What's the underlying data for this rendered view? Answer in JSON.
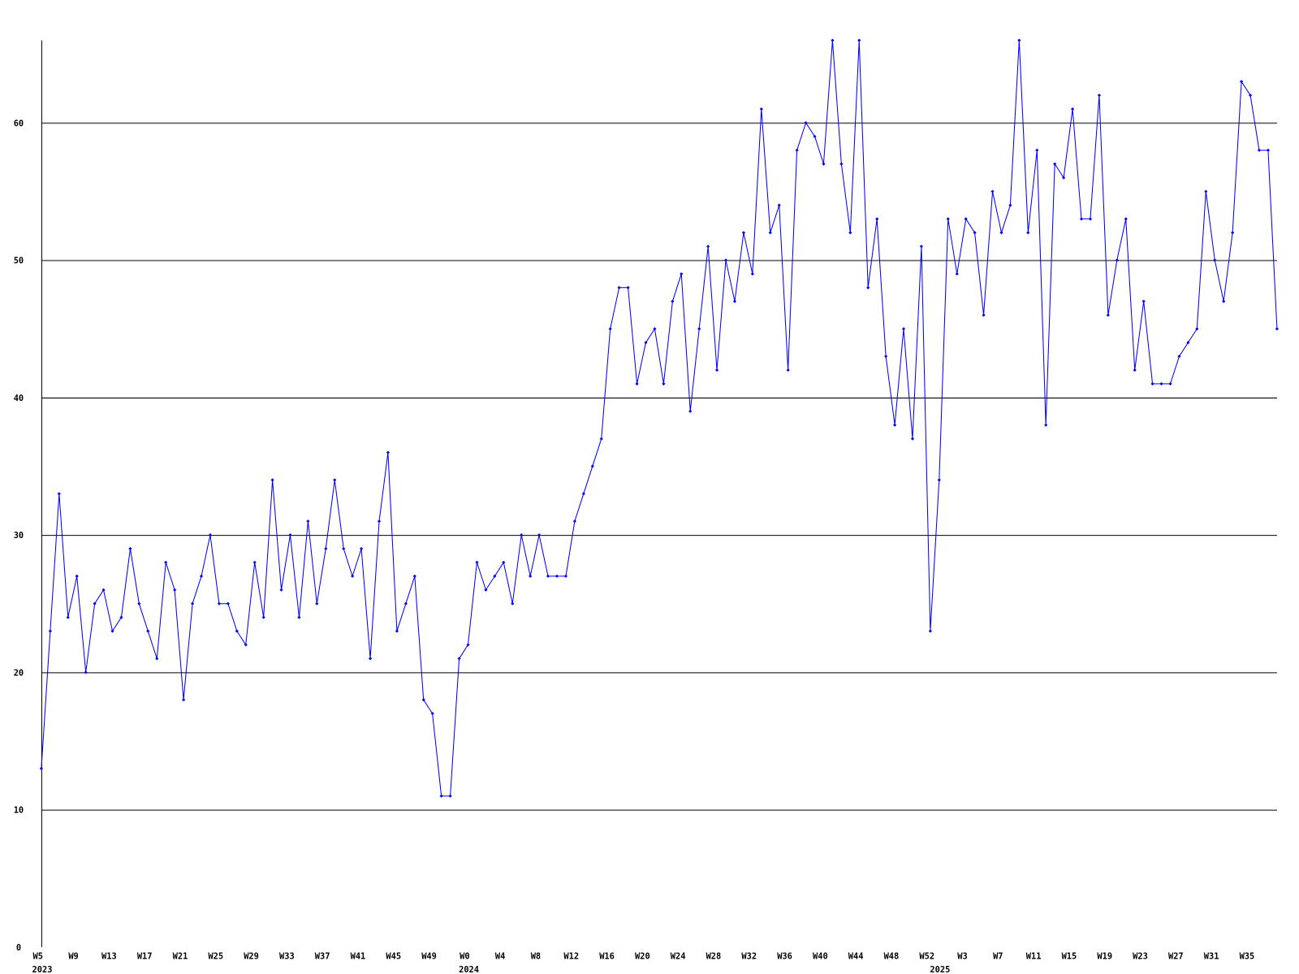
{
  "chart_data": {
    "type": "line",
    "categories": [
      "W5",
      null,
      null,
      null,
      "W9",
      null,
      null,
      null,
      "W13",
      null,
      null,
      null,
      "W17",
      null,
      null,
      null,
      "W21",
      null,
      null,
      null,
      "W25",
      null,
      null,
      null,
      "W29",
      null,
      null,
      null,
      "W33",
      null,
      null,
      null,
      "W37",
      null,
      null,
      null,
      "W41",
      null,
      null,
      null,
      "W45",
      null,
      null,
      null,
      "W49",
      null,
      null,
      null,
      "W0",
      null,
      null,
      null,
      "W4",
      null,
      null,
      null,
      "W8",
      null,
      null,
      null,
      "W12",
      null,
      null,
      null,
      "W16",
      null,
      null,
      null,
      "W20",
      null,
      null,
      null,
      "W24",
      null,
      null,
      null,
      "W28",
      null,
      null,
      null,
      "W32",
      null,
      null,
      null,
      "W36",
      null,
      null,
      null,
      "W40",
      null,
      null,
      null,
      "W44",
      null,
      null,
      null,
      "W48",
      null,
      null,
      null,
      "W52",
      null,
      null,
      null,
      "W3",
      null,
      null,
      null,
      "W7",
      null,
      null,
      null,
      "W11",
      null,
      null,
      null,
      "W15",
      null,
      null,
      null,
      "W19",
      null,
      null,
      null,
      "W23",
      null,
      null,
      null,
      "W27",
      null,
      null,
      null,
      "W31",
      null,
      null,
      null,
      "W35",
      null,
      null,
      null
    ],
    "year_labels": [
      {
        "category": 0,
        "label": "2023"
      },
      {
        "category": 48,
        "label": "2024"
      },
      {
        "category": 101,
        "label": "2025"
      }
    ],
    "series": [
      {
        "color": "#0000ff",
        "values": [
          13,
          23,
          33,
          24,
          27,
          20,
          25,
          26,
          23,
          24,
          29,
          25,
          23,
          21,
          28,
          26,
          18,
          25,
          27,
          30,
          25,
          25,
          23,
          22,
          28,
          24,
          34,
          26,
          30,
          24,
          31,
          25,
          29,
          34,
          29,
          27,
          29,
          21,
          31,
          36,
          23,
          25,
          27,
          18,
          17,
          11,
          11,
          21,
          22,
          28,
          26,
          27,
          28,
          25,
          30,
          27,
          30,
          27,
          27,
          27,
          31,
          33,
          35,
          37,
          45,
          48,
          48,
          41,
          44,
          45,
          41,
          47,
          49,
          39,
          45,
          51,
          42,
          50,
          47,
          52,
          49,
          61,
          52,
          54,
          42,
          58,
          60,
          59,
          57,
          66,
          57,
          52,
          66,
          48,
          53,
          43,
          38,
          45,
          37,
          51,
          23,
          34,
          53,
          49,
          53,
          52,
          46,
          55,
          52,
          54,
          66,
          52,
          58,
          38,
          57,
          56,
          61,
          53,
          53,
          62,
          46,
          50,
          53,
          42,
          47,
          41,
          41,
          41,
          43,
          44,
          45,
          55,
          50,
          47,
          52,
          63,
          62,
          58,
          58,
          45
        ]
      }
    ],
    "ylim": [
      0,
      66
    ],
    "yticks": [
      0,
      10,
      20,
      30,
      40,
      50,
      60
    ],
    "grid": true
  }
}
